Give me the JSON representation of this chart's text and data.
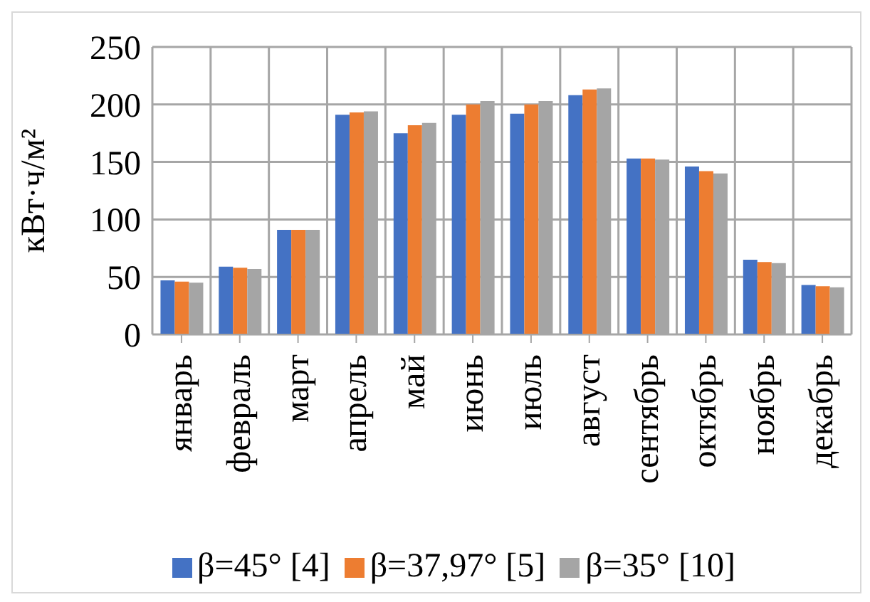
{
  "chart_data": {
    "type": "bar",
    "ylabel": "кВт·ч/м²",
    "categories": [
      "январь",
      "февраль",
      "март",
      "апрель",
      "май",
      "июнь",
      "июль",
      "август",
      "сентябрь",
      "октябрь",
      "ноябрь",
      "декабрь"
    ],
    "series": [
      {
        "name": "β=45° [4]",
        "color": "#4472c4",
        "values": [
          47,
          59,
          91,
          191,
          175,
          191,
          192,
          208,
          153,
          146,
          65,
          43
        ]
      },
      {
        "name": "β=37,97° [5]",
        "color": "#ed7d31",
        "values": [
          46,
          58,
          91,
          193,
          182,
          200,
          200,
          213,
          153,
          142,
          63,
          42
        ]
      },
      {
        "name": "β=35° [10]",
        "color": "#a5a5a5",
        "values": [
          45,
          57,
          91,
          194,
          184,
          203,
          203,
          214,
          152,
          140,
          62,
          41
        ]
      }
    ],
    "ylim": [
      0,
      250
    ],
    "yticks": [
      0,
      50,
      100,
      150,
      200,
      250
    ],
    "grid": true,
    "legend": "bottom"
  }
}
